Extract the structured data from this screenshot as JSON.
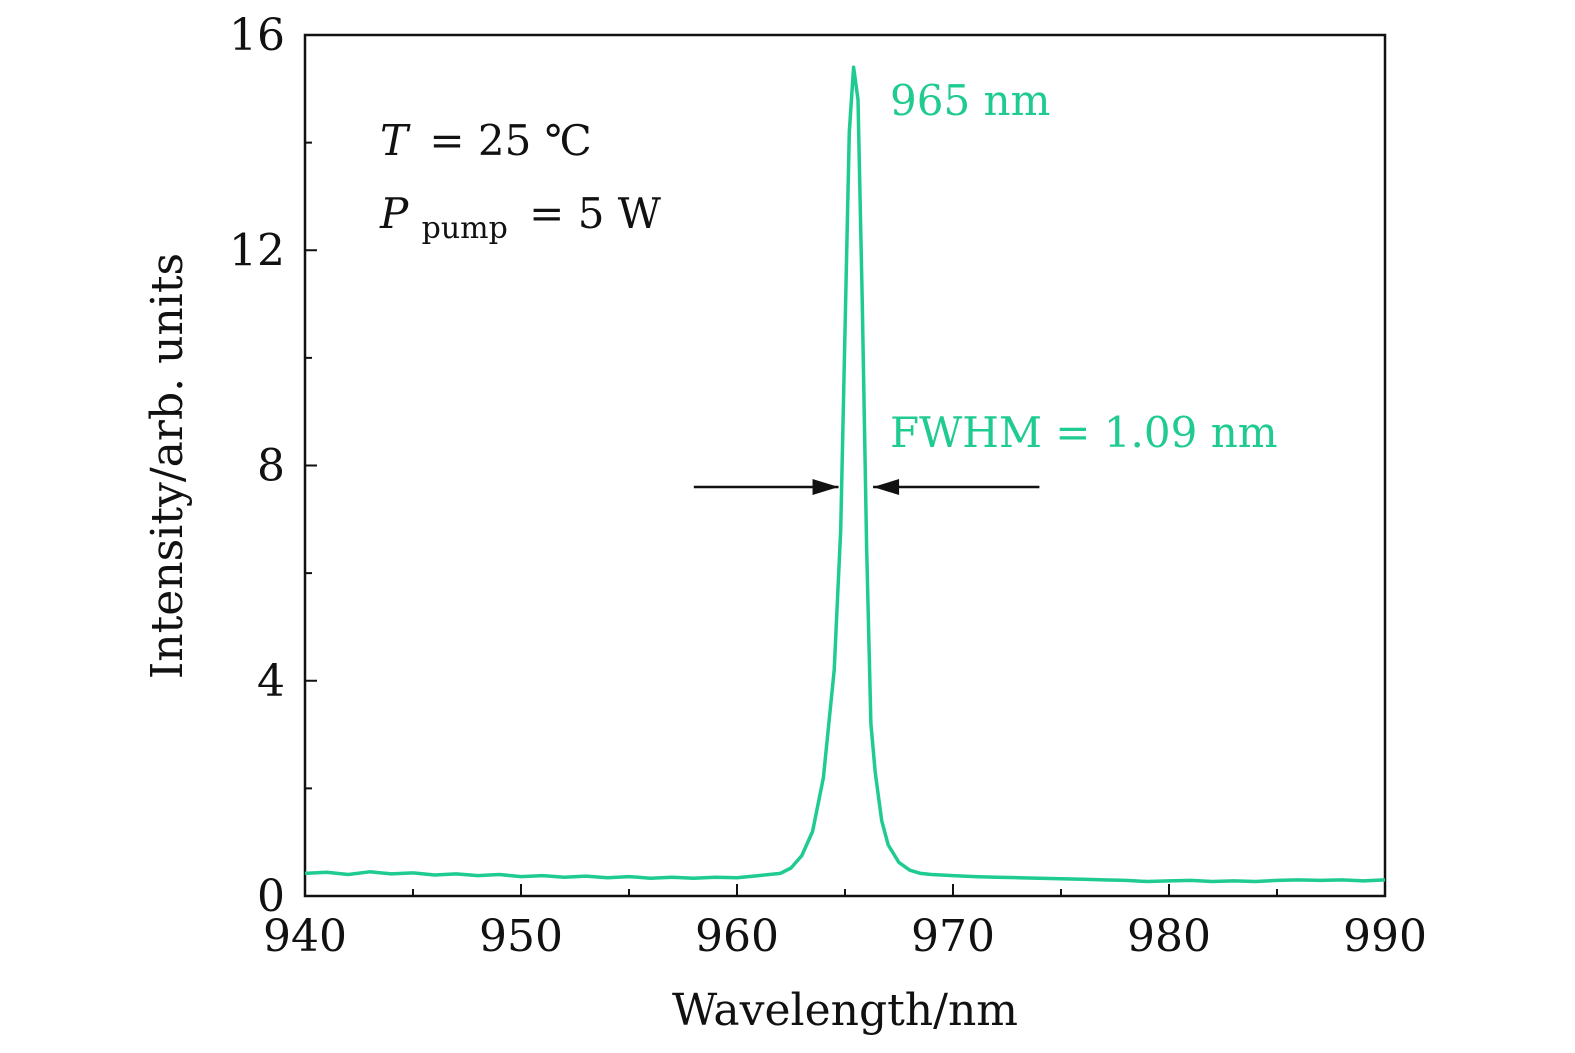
{
  "chart_data": {
    "type": "line",
    "xlabel": "Wavelength/nm",
    "ylabel": "Intensity/arb. units",
    "xlim": [
      940,
      990
    ],
    "ylim": [
      0,
      16
    ],
    "x_ticks": [
      940,
      950,
      960,
      970,
      980,
      990
    ],
    "y_ticks": [
      0,
      4,
      8,
      12,
      16
    ],
    "x_minor_step": 5,
    "y_minor_step": 2,
    "series": [
      {
        "name": "spectrum",
        "color": "#1fcb8f",
        "x": [
          940,
          941,
          942,
          943,
          944,
          945,
          946,
          947,
          948,
          949,
          950,
          951,
          952,
          953,
          954,
          955,
          956,
          957,
          958,
          959,
          960,
          961,
          962,
          962.5,
          963,
          963.5,
          964,
          964.5,
          964.8,
          965.0,
          965.2,
          965.4,
          965.6,
          965.8,
          966.0,
          966.2,
          966.4,
          966.7,
          967.0,
          967.5,
          968,
          968.5,
          969,
          970,
          971,
          972,
          973,
          974,
          975,
          976,
          977,
          978,
          979,
          980,
          981,
          982,
          983,
          984,
          985,
          986,
          987,
          988,
          989,
          990
        ],
        "values": [
          0.42,
          0.44,
          0.4,
          0.45,
          0.41,
          0.43,
          0.39,
          0.41,
          0.38,
          0.4,
          0.36,
          0.38,
          0.35,
          0.37,
          0.34,
          0.36,
          0.33,
          0.35,
          0.33,
          0.35,
          0.34,
          0.38,
          0.42,
          0.52,
          0.75,
          1.2,
          2.2,
          4.2,
          6.8,
          10.5,
          14.2,
          15.4,
          14.8,
          11.0,
          6.5,
          3.2,
          2.3,
          1.4,
          0.95,
          0.62,
          0.48,
          0.42,
          0.4,
          0.38,
          0.36,
          0.35,
          0.34,
          0.33,
          0.32,
          0.31,
          0.3,
          0.29,
          0.27,
          0.28,
          0.29,
          0.27,
          0.28,
          0.27,
          0.29,
          0.3,
          0.29,
          0.3,
          0.28,
          0.3
        ]
      }
    ],
    "annotations": {
      "peak_label": "965 nm",
      "fwhm_label": "FWHM = 1.09 nm",
      "temp_var": "T",
      "temp_value": "= 25 ℃",
      "power_var": "P",
      "power_sub": "pump",
      "power_value": "= 5 W"
    },
    "fwhm_arrow_y": 7.6,
    "fwhm_left_x": [
      958,
      964.7
    ],
    "fwhm_right_x": [
      966.3,
      974
    ]
  }
}
